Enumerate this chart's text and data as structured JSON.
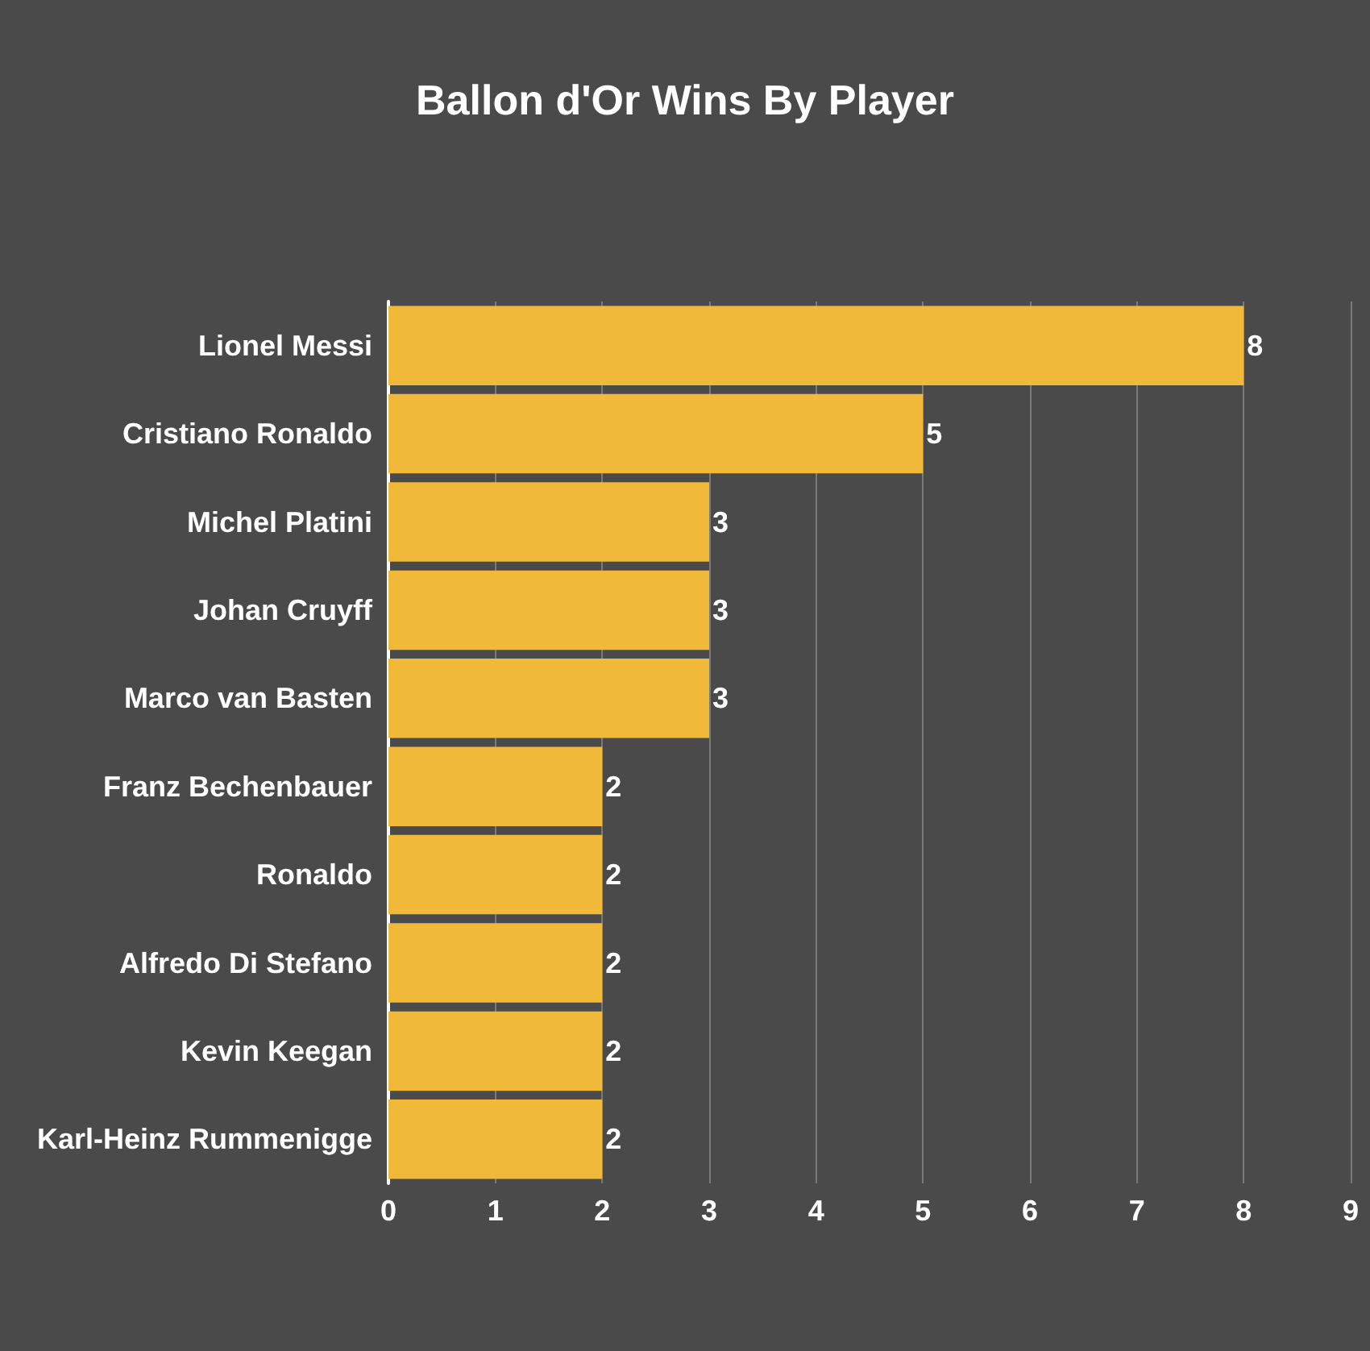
{
  "chart_data": {
    "type": "bar",
    "title": "Ballon d'Or Wins By Player",
    "orientation": "horizontal",
    "categories": [
      "Lionel Messi",
      "Cristiano Ronaldo",
      "Michel Platini",
      "Johan Cruyff",
      "Marco van Basten",
      "Franz Bechenbauer",
      "Ronaldo",
      "Alfredo Di Stefano",
      "Kevin Keegan",
      "Karl-Heinz Rummenigge"
    ],
    "values": [
      8,
      5,
      3,
      3,
      3,
      2,
      2,
      2,
      2,
      2
    ],
    "color": "#f0b93a",
    "xlim": [
      0,
      9
    ],
    "xticks": [
      0,
      1,
      2,
      3,
      4,
      5,
      6,
      7,
      8,
      9
    ],
    "grid": "x",
    "data_labels": true
  }
}
